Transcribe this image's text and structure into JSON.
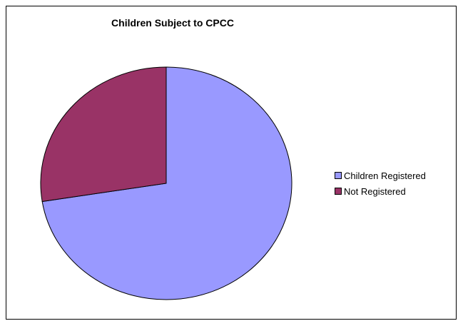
{
  "chart_data": {
    "type": "pie",
    "title": "Children Subject to CPCC",
    "categories": [
      "Children Registered",
      "Not Registered"
    ],
    "values": [
      72.5,
      27.5
    ],
    "colors": [
      "#9999ff",
      "#993366"
    ],
    "legend_position": "right"
  }
}
